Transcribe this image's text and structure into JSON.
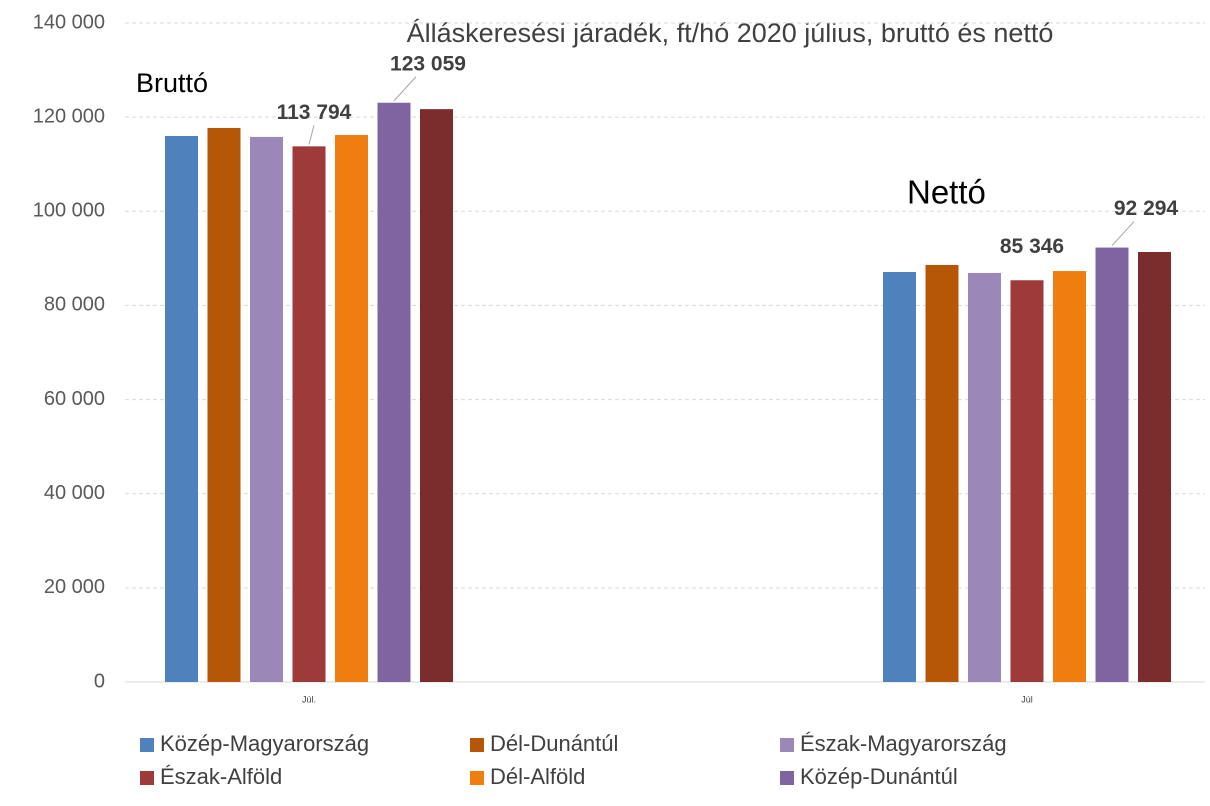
{
  "chart_data": {
    "type": "bar",
    "title": "Álláskeresési járadék, ft/hó  2020 július, bruttó és nettó",
    "annotations": [
      "Bruttó",
      "Nettó"
    ],
    "categories": [
      "Júl.",
      "Júl"
    ],
    "series": [
      {
        "name": "Közép-Magyarország",
        "color": "#4f81bd",
        "values": [
          116000,
          87100
        ]
      },
      {
        "name": "Dél-Dunántúl",
        "color": "#b65708",
        "values": [
          117700,
          88600
        ]
      },
      {
        "name": "Észak-Magyarország",
        "color": "#9b87b8",
        "values": [
          115800,
          86900
        ]
      },
      {
        "name": "Észak-Alföld",
        "color": "#9e3a3a",
        "values": [
          113794,
          85346
        ],
        "value_labels": [
          "113 794",
          "85 346"
        ]
      },
      {
        "name": "Dél-Alföld",
        "color": "#f07d10",
        "values": [
          116200,
          87300
        ]
      },
      {
        "name": "Közép-Dunántúl",
        "color": "#8064a2",
        "values": [
          123059,
          92294
        ],
        "value_labels": [
          "123 059",
          "92 294"
        ]
      },
      {
        "color": "#7b2c2c",
        "values": [
          121700,
          91350
        ]
      }
    ],
    "ylim": [
      0,
      140000
    ],
    "yticks": [
      0,
      {
        "value": 20000,
        "label": "20 000"
      },
      {
        "value": 40000,
        "label": "40 000"
      },
      {
        "value": 60000,
        "label": "60 000"
      },
      {
        "value": 80000,
        "label": "80 000"
      },
      {
        "value": 100000,
        "label": "100 000"
      },
      {
        "value": 120000,
        "label": "120 000"
      },
      {
        "value": 140000,
        "label": "140 000"
      }
    ],
    "grid": true
  }
}
